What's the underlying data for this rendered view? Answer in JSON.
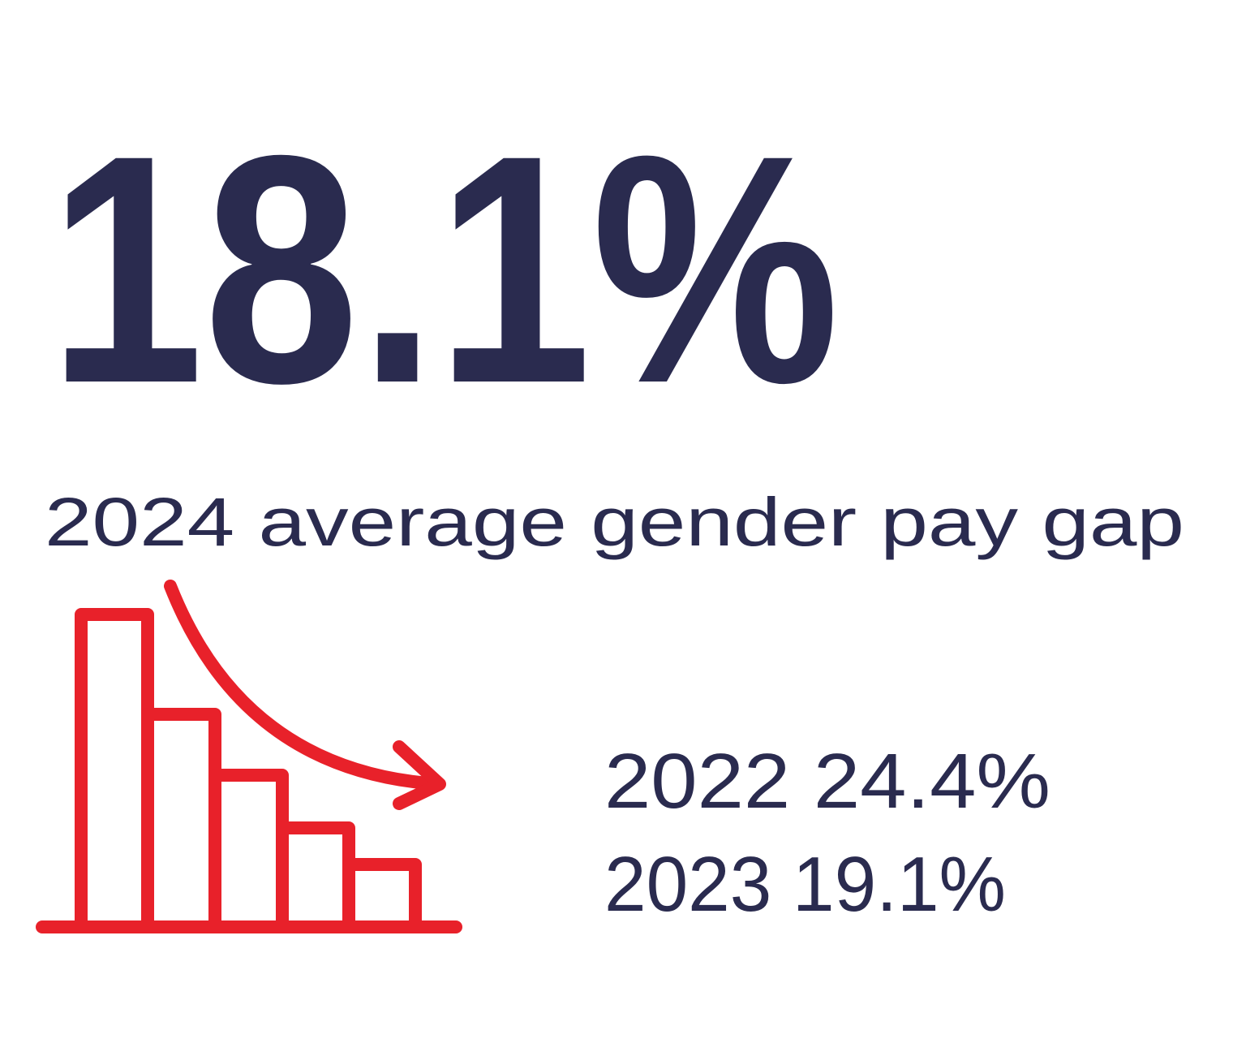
{
  "headline": {
    "value": "18.1%",
    "caption": "2024 average gender pay gap"
  },
  "history": [
    {
      "text": "2022 24.4%"
    },
    {
      "text": "2023 19.1%"
    }
  ]
}
